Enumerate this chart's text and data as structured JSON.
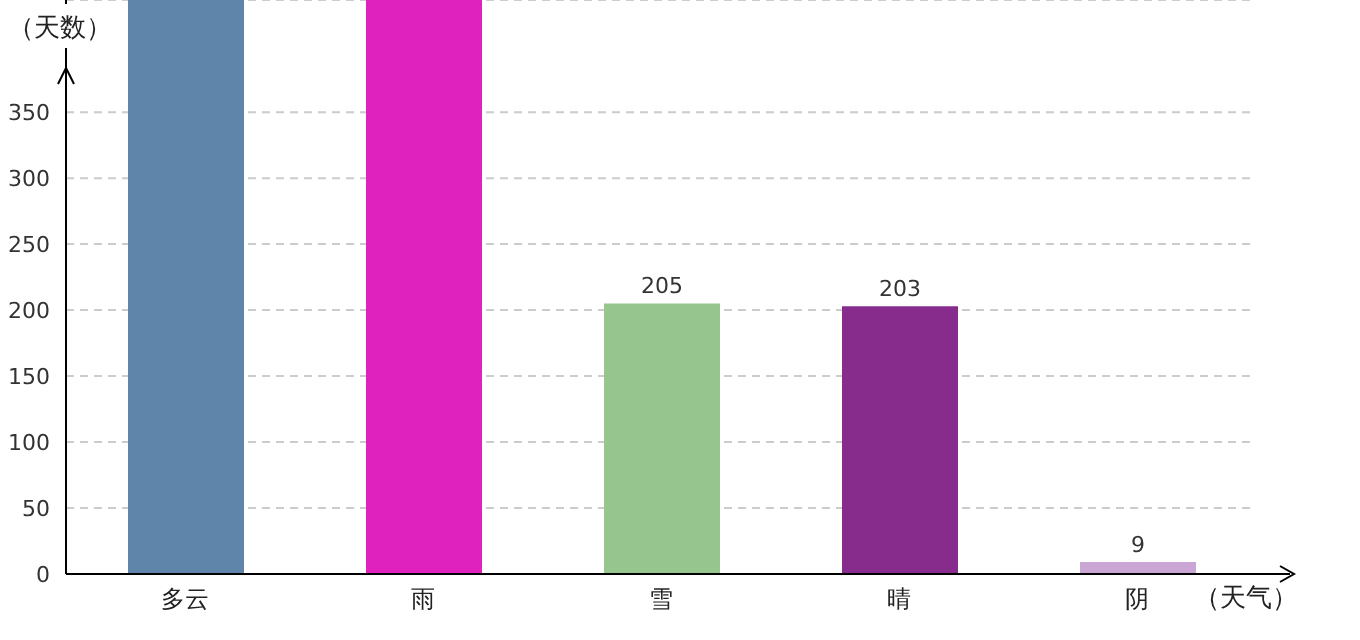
{
  "chart_data": {
    "type": "bar",
    "xlabel": "（天气）",
    "ylabel": "（天数）",
    "categories": [
      "多云",
      "雨",
      "雪",
      "晴",
      "阴"
    ],
    "values": [
      435,
      435,
      205,
      203,
      9
    ],
    "colors": [
      "#5f85aa",
      "#df22bd",
      "#96c68e",
      "#872b8d",
      "#c9a6d3"
    ],
    "value_labels": [
      null,
      null,
      "205",
      "203",
      "9"
    ],
    "ylim": [
      0,
      435
    ],
    "yticks": [
      0,
      50,
      100,
      150,
      200,
      250,
      300,
      350
    ],
    "grid": "y",
    "legend": false
  }
}
